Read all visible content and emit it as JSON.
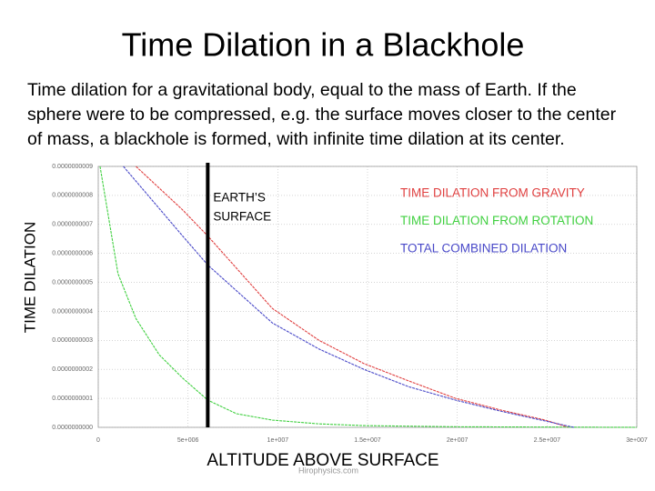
{
  "title": "Time Dilation in a Blackhole",
  "body": [
    "Time dilation for a gravitational body, equal to the mass of Earth. If the",
    "sphere were to be compressed, e.g. the surface moves closer to the center",
    "of mass, a blackhole is formed, with infinite time dilation at its center."
  ],
  "chart_data": {
    "type": "line",
    "xlabel": "ALTITUDE ABOVE SURFACE",
    "ylabel": "TIME DILATION",
    "watermark": "Hirophysics.com",
    "annotation": {
      "text": [
        "EARTH’S",
        "SURFACE"
      ],
      "x": 6100000
    },
    "xlim": [
      0,
      30000000
    ],
    "xticks": [
      0,
      {
        "value": 5000000,
        "label": "5e+006"
      },
      {
        "value": 10000000,
        "label": "1e+007"
      },
      {
        "value": 15000000,
        "label": "1.5e+007"
      },
      {
        "value": 20000000,
        "label": "2e+007"
      },
      {
        "value": 25000000,
        "label": "2.5e+007"
      },
      {
        "value": 30000000,
        "label": "3e+007"
      }
    ],
    "ylim": [
      0,
      9e-10
    ],
    "yticks": [
      {
        "value": 0,
        "label": "0.0000000000"
      },
      {
        "value": 1e-10,
        "label": "0.0000000001"
      },
      {
        "value": 2e-10,
        "label": "0.0000000002"
      },
      {
        "value": 3e-10,
        "label": "0.0000000003"
      },
      {
        "value": 4e-10,
        "label": "0.0000000004"
      },
      {
        "value": 5e-10,
        "label": "0.0000000005"
      },
      {
        "value": 6e-10,
        "label": "0.0000000006"
      },
      {
        "value": 7e-10,
        "label": "0.0000000007"
      },
      {
        "value": 8e-10,
        "label": "0.0000000008"
      },
      {
        "value": 9e-10,
        "label": "0.0000000009"
      }
    ],
    "grid": true,
    "series": [
      {
        "name": "TIME DILATION FROM GRAVITY",
        "color": "#e04040",
        "x": [
          2100000,
          4700000,
          6100000,
          9700000,
          12300000,
          14800000,
          17300000,
          19900000,
          22400000,
          24900000,
          26200000
        ],
        "values": [
          9e-10,
          7.5e-10,
          6.6e-10,
          4.1e-10,
          3e-10,
          2.2e-10,
          1.6e-10,
          1e-10,
          6e-11,
          2.5e-11,
          0
        ]
      },
      {
        "name": "TIME DILATION FROM ROTATION",
        "color": "#40d040",
        "x": [
          100000,
          1100000,
          2100000,
          3400000,
          4700000,
          6100000,
          7700000,
          9700000,
          12300000,
          14800000,
          19900000,
          30000000
        ],
        "values": [
          9e-10,
          5.3e-10,
          3.75e-10,
          2.5e-10,
          1.7e-10,
          9.4e-11,
          4.7e-11,
          2.5e-11,
          1.2e-11,
          6e-12,
          2e-12,
          0
        ]
      },
      {
        "name": "TOTAL COMBINED DILATION",
        "color": "#4848c8",
        "x": [
          1400000,
          4700000,
          6100000,
          9700000,
          12300000,
          14800000,
          17300000,
          19900000,
          22400000,
          24900000,
          26500000
        ],
        "values": [
          9e-10,
          6.6e-10,
          5.6e-10,
          3.6e-10,
          2.7e-10,
          2e-10,
          1.4e-10,
          9.4e-11,
          5.6e-11,
          2.2e-11,
          0
        ]
      }
    ]
  }
}
